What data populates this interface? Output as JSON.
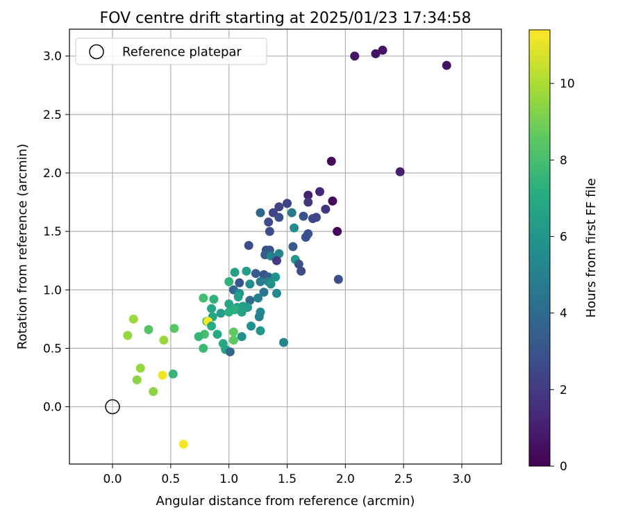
{
  "chart_data": {
    "type": "scatter",
    "title": "FOV centre drift starting at 2025/01/23 17:34:58",
    "xlabel": "Angular distance from reference (arcmin)",
    "ylabel": "Rotation from reference (arcmin)",
    "xlim": [
      -0.37,
      3.34
    ],
    "ylim": [
      -0.49,
      3.23
    ],
    "xticks": [
      0.0,
      0.5,
      1.0,
      1.5,
      2.0,
      2.5,
      3.0
    ],
    "xtick_labels": [
      "0.0",
      "0.5",
      "1.0",
      "1.5",
      "2.0",
      "2.5",
      "3.0"
    ],
    "yticks": [
      0.0,
      0.5,
      1.0,
      1.5,
      2.0,
      2.5,
      3.0
    ],
    "ytick_labels": [
      "0.0",
      "0.5",
      "1.0",
      "1.5",
      "2.0",
      "2.5",
      "3.0"
    ],
    "grid": true,
    "legend": {
      "position": "top-left",
      "entries": [
        "Reference platepar"
      ]
    },
    "reference_point": [
      0.0,
      0.0
    ],
    "colorbar": {
      "label": "Hours from first FF file",
      "range": [
        0,
        11.4
      ],
      "ticks": [
        0,
        2,
        4,
        6,
        8,
        10
      ],
      "tick_labels": [
        "0",
        "2",
        "4",
        "6",
        "8",
        "10"
      ],
      "colormap": "viridis"
    },
    "points": [
      [
        2.08,
        3.0,
        0.6
      ],
      [
        2.26,
        3.02,
        0.6
      ],
      [
        2.32,
        3.05,
        0.6
      ],
      [
        2.87,
        2.92,
        0.6
      ],
      [
        1.88,
        2.1,
        0.3
      ],
      [
        2.47,
        2.01,
        1.0
      ],
      [
        1.89,
        1.76,
        0.2
      ],
      [
        1.93,
        1.5,
        0.2
      ],
      [
        1.68,
        1.81,
        1.1
      ],
      [
        1.78,
        1.84,
        1.3
      ],
      [
        1.68,
        1.75,
        1.8
      ],
      [
        1.83,
        1.69,
        1.8
      ],
      [
        1.94,
        1.09,
        2.8
      ],
      [
        1.5,
        1.74,
        2.3
      ],
      [
        1.43,
        1.71,
        2.3
      ],
      [
        1.38,
        1.66,
        2.3
      ],
      [
        1.64,
        1.63,
        3.0
      ],
      [
        1.72,
        1.61,
        2.5
      ],
      [
        1.75,
        1.62,
        2.4
      ],
      [
        1.27,
        1.66,
        3.8
      ],
      [
        1.54,
        1.66,
        4.8
      ],
      [
        1.34,
        1.58,
        2.6
      ],
      [
        1.35,
        1.5,
        2.6
      ],
      [
        1.43,
        1.62,
        2.8
      ],
      [
        1.56,
        1.53,
        5.5
      ],
      [
        1.68,
        1.48,
        3.0
      ],
      [
        1.66,
        1.45,
        2.8
      ],
      [
        1.17,
        1.38,
        2.7
      ],
      [
        1.55,
        1.37,
        3.2
      ],
      [
        1.32,
        1.34,
        2.8
      ],
      [
        1.35,
        1.34,
        3.0
      ],
      [
        1.31,
        1.3,
        3.3
      ],
      [
        1.43,
        1.31,
        5.2
      ],
      [
        1.36,
        1.29,
        5.0
      ],
      [
        1.41,
        1.25,
        2.0
      ],
      [
        1.57,
        1.26,
        6.2
      ],
      [
        1.6,
        1.22,
        3.0
      ],
      [
        1.62,
        1.16,
        2.6
      ],
      [
        1.15,
        1.16,
        6.4
      ],
      [
        1.23,
        1.14,
        3.3
      ],
      [
        1.3,
        1.13,
        3.0
      ],
      [
        1.05,
        1.15,
        6.5
      ],
      [
        1.34,
        1.11,
        3.5
      ],
      [
        1.4,
        1.11,
        5.8
      ],
      [
        1.34,
        1.07,
        5.0
      ],
      [
        1.27,
        1.07,
        4.8
      ],
      [
        1.09,
        1.06,
        3.0
      ],
      [
        1.18,
        1.05,
        5.6
      ],
      [
        1.36,
        1.05,
        5.8
      ],
      [
        1.0,
        1.07,
        7.4
      ],
      [
        1.04,
        1.0,
        3.8
      ],
      [
        1.3,
        0.98,
        4.5
      ],
      [
        1.09,
        0.97,
        5.8
      ],
      [
        1.41,
        0.97,
        5.3
      ],
      [
        1.25,
        0.93,
        5.0
      ],
      [
        1.18,
        0.91,
        4.0
      ],
      [
        1.08,
        0.94,
        6.4
      ],
      [
        0.78,
        0.93,
        7.9
      ],
      [
        0.87,
        0.92,
        7.4
      ],
      [
        1.0,
        0.88,
        6.8
      ],
      [
        1.12,
        0.86,
        6.5
      ],
      [
        1.16,
        0.85,
        6.3
      ],
      [
        1.07,
        0.85,
        6.7
      ],
      [
        0.85,
        0.84,
        6.8
      ],
      [
        1.05,
        0.83,
        7.3
      ],
      [
        1.11,
        0.81,
        6.6
      ],
      [
        0.93,
        0.8,
        6.4
      ],
      [
        1.0,
        0.81,
        7.2
      ],
      [
        0.86,
        0.77,
        6.8
      ],
      [
        1.27,
        0.81,
        5.3
      ],
      [
        1.26,
        0.77,
        5.0
      ],
      [
        0.81,
        0.73,
        7.4
      ],
      [
        0.82,
        0.73,
        11.4
      ],
      [
        0.85,
        0.69,
        7.1
      ],
      [
        1.19,
        0.69,
        5.8
      ],
      [
        1.04,
        0.64,
        8.6
      ],
      [
        0.9,
        0.62,
        7.0
      ],
      [
        0.79,
        0.62,
        8.0
      ],
      [
        1.11,
        0.6,
        5.8
      ],
      [
        1.27,
        0.65,
        6.0
      ],
      [
        0.74,
        0.6,
        7.6
      ],
      [
        0.95,
        0.54,
        6.9
      ],
      [
        1.04,
        0.57,
        8.5
      ],
      [
        0.78,
        0.5,
        7.7
      ],
      [
        0.97,
        0.49,
        6.6
      ],
      [
        1.01,
        0.47,
        3.8
      ],
      [
        1.47,
        0.55,
        5.2
      ],
      [
        0.53,
        0.67,
        8.4
      ],
      [
        0.31,
        0.66,
        8.3
      ],
      [
        0.18,
        0.75,
        9.7
      ],
      [
        0.13,
        0.61,
        9.6
      ],
      [
        0.44,
        0.57,
        9.7
      ],
      [
        0.24,
        0.33,
        9.6
      ],
      [
        0.21,
        0.23,
        9.4
      ],
      [
        0.43,
        0.27,
        11.2
      ],
      [
        0.52,
        0.28,
        7.6
      ],
      [
        0.35,
        0.13,
        9.4
      ],
      [
        0.61,
        -0.32,
        11.3
      ]
    ]
  }
}
